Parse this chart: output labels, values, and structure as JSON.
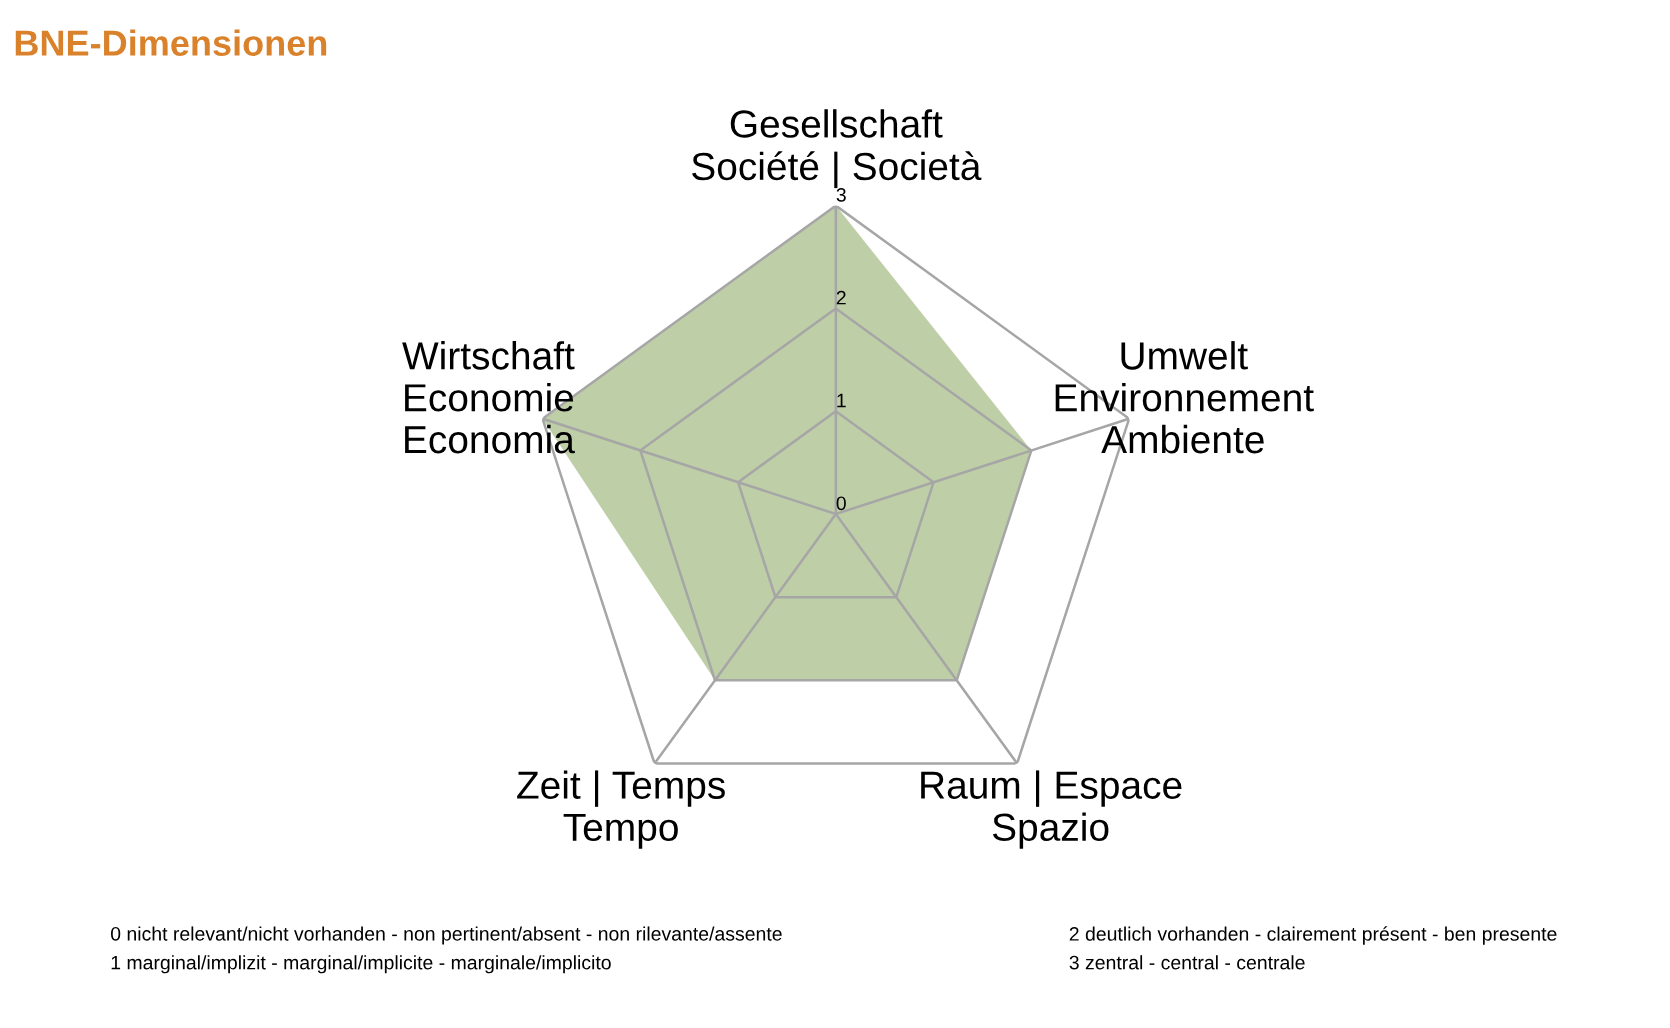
{
  "chart_data": {
    "type": "radar",
    "title": "BNE-Dimensionen",
    "categories": [
      "Gesellschaft\nSociété | Società",
      "Umwelt\nEnvironnement\nAmbiente",
      "Raum | Espace\nSpazio",
      "Zeit | Temps\nTempo",
      "Wirtschaft\nEconomie\nEconomia"
    ],
    "series": [
      {
        "color": "#b3c698",
        "values": [
          3,
          2,
          2,
          2,
          3
        ]
      }
    ],
    "ylim": [
      0,
      3
    ],
    "yticks": [
      0,
      1,
      2,
      3
    ],
    "grid": true,
    "legend": false,
    "annotations": [
      "0 nicht relevant/nicht vorhanden - non pertinent/absent - non rilevante/assente",
      "1 marginal/implizit - marginal/implicite - marginale/implicito",
      "2 deutlich vorhanden - clairement présent - ben presente",
      "3 zentral - central - centrale"
    ]
  }
}
